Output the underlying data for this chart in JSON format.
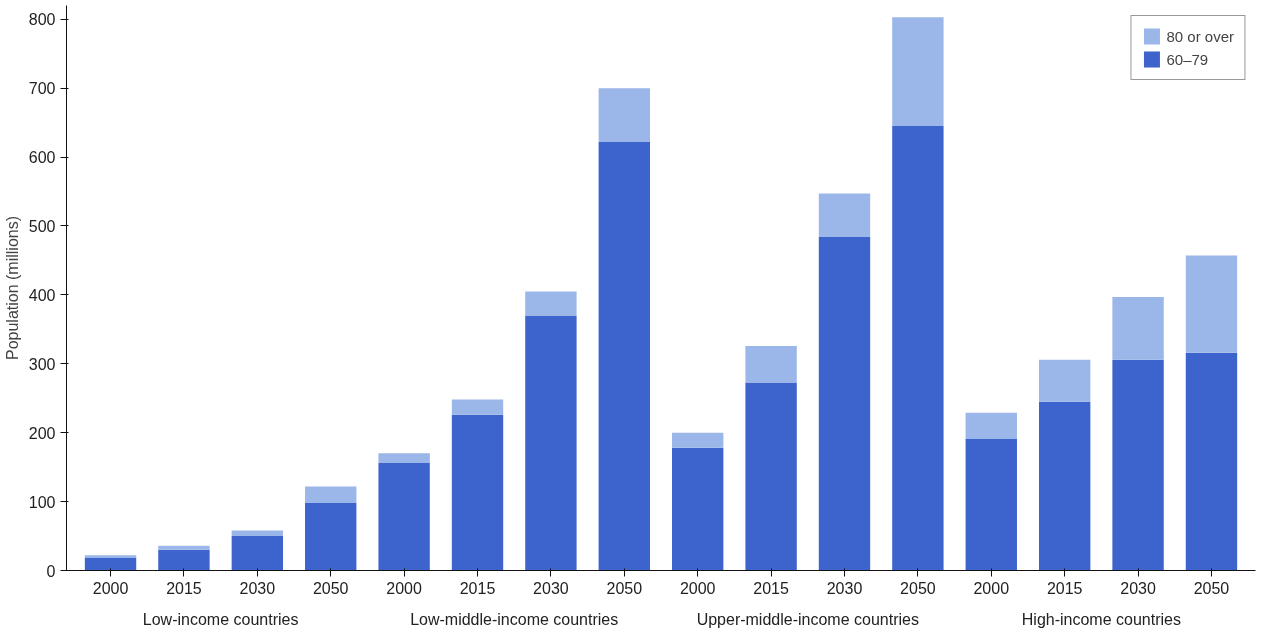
{
  "chart_data": {
    "type": "bar",
    "stacked": true,
    "ylabel": "Population (millions)",
    "categories": [
      "2000",
      "2015",
      "2030",
      "2050",
      "2000",
      "2015",
      "2030",
      "2050",
      "2000",
      "2015",
      "2030",
      "2050",
      "2000",
      "2015",
      "2030",
      "2050"
    ],
    "series": [
      {
        "name": "60–79",
        "color": "#3d63cc",
        "values": [
          18,
          30,
          50,
          98,
          156,
          226,
          370,
          622,
          178,
          273,
          484,
          645,
          191,
          245,
          306,
          316
        ]
      },
      {
        "name": "80 or over",
        "color": "#9bb6e8",
        "values": [
          4,
          6,
          8,
          24,
          14,
          22,
          35,
          78,
          22,
          53,
          63,
          158,
          38,
          61,
          91,
          141
        ]
      }
    ],
    "annotations": [
      "Low-income countries",
      "Low-middle-income countries",
      "Upper-middle-income countries",
      "High-income countries"
    ],
    "ylim": [
      0,
      820
    ],
    "yticks": [
      0,
      100,
      200,
      300,
      400,
      500,
      600,
      700,
      800
    ],
    "grid": false,
    "legend": "top right"
  }
}
